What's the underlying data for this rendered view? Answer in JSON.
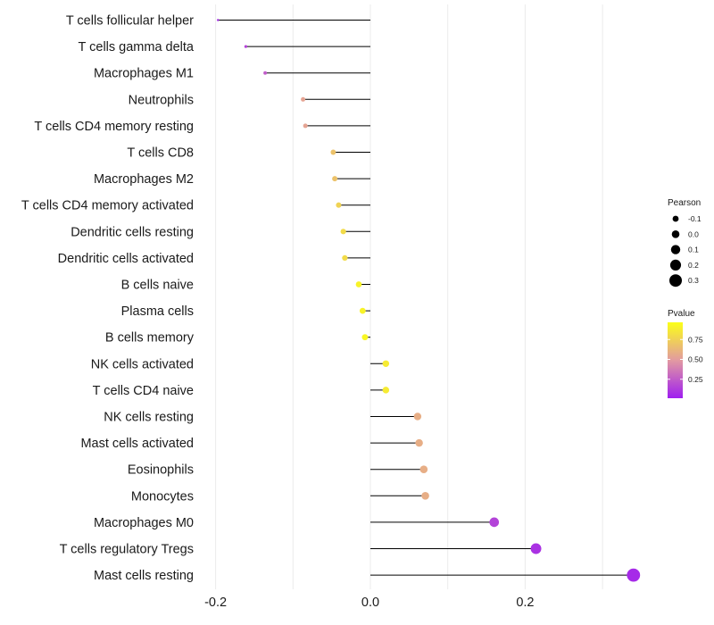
{
  "chart_data": {
    "type": "lollipop",
    "categories": [
      "T cells follicular helper",
      "T cells gamma delta",
      "Macrophages M1",
      "Neutrophils",
      "T cells CD4 memory resting",
      "T cells CD8",
      "Macrophages M2",
      "T cells CD4 memory activated",
      "Dendritic cells resting",
      "Dendritic cells activated",
      "B cells naive",
      "Plasma cells",
      "B cells memory",
      "NK cells activated",
      "T cells CD4 naive",
      "NK cells resting",
      "Mast cells activated",
      "Eosinophils",
      "Monocytes",
      "Macrophages M0",
      "T cells regulatory  Tregs ",
      "Mast cells resting"
    ],
    "values": [
      -0.197,
      -0.161,
      -0.136,
      -0.087,
      -0.084,
      -0.048,
      -0.046,
      -0.041,
      -0.035,
      -0.033,
      -0.015,
      -0.01,
      -0.007,
      0.02,
      0.02,
      0.061,
      0.063,
      0.069,
      0.071,
      0.16,
      0.214,
      0.34
    ],
    "pvalues": [
      0.05,
      0.15,
      0.25,
      0.55,
      0.55,
      0.7,
      0.7,
      0.78,
      0.82,
      0.82,
      0.94,
      0.94,
      0.96,
      0.9,
      0.9,
      0.6,
      0.6,
      0.6,
      0.6,
      0.15,
      0.08,
      0.05
    ],
    "xticks": [
      -0.2,
      0.0,
      0.2
    ],
    "tick_labels": [
      "-0.2",
      "0.0",
      "0.2"
    ],
    "xlim": [
      -0.2,
      0.34
    ],
    "size_legend": {
      "title": "Pearson",
      "values": [
        -0.1,
        0.0,
        0.1,
        0.2,
        0.3
      ],
      "labels": [
        "-0.1",
        "0.0",
        "0.1",
        "0.2",
        "0.3"
      ]
    },
    "color_legend": {
      "title": "Pvalue",
      "range": [
        0.0,
        1.0
      ],
      "ticks": [
        0.75,
        0.5,
        0.25
      ],
      "labels": [
        "0.75",
        "0.50",
        "0.25"
      ]
    },
    "colors": {
      "low": "#9f1ef0",
      "mid": "#e29aa1",
      "high": "#fbff18",
      "stem": "#000000",
      "grid": "#ebebeb"
    }
  }
}
